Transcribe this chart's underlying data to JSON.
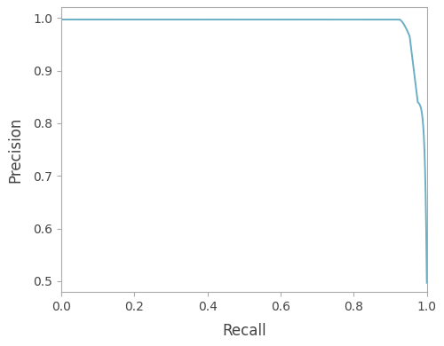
{
  "xlabel": "Recall",
  "ylabel": "Precision",
  "xlim": [
    0.0,
    1.0
  ],
  "ylim": [
    0.48,
    1.02
  ],
  "xticks": [
    0.0,
    0.2,
    0.4,
    0.6,
    0.8,
    1.0
  ],
  "yticks": [
    0.5,
    0.6,
    0.7,
    0.8,
    0.9,
    1.0
  ],
  "line_color": "#6aafc5",
  "line_width": 1.4,
  "background_color": "#ffffff",
  "spine_color": "#aaaaaa",
  "tick_color": "#444444",
  "label_fontsize": 12,
  "tick_fontsize": 10,
  "curve_flat_end": 0.925,
  "curve_drop_start": 0.925,
  "curve_mid_point": 0.966,
  "curve_mid_precision": 0.84,
  "curve_end_recall": 1.0,
  "curve_end_precision": 0.497
}
